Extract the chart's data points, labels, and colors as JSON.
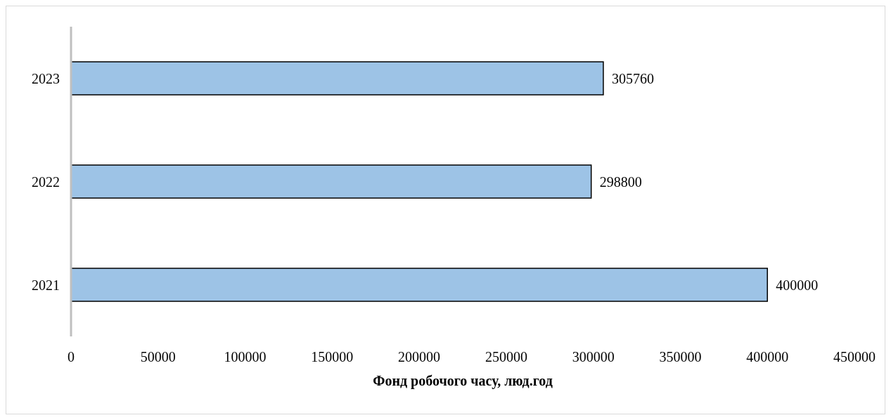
{
  "chart_data": {
    "type": "bar",
    "orientation": "horizontal",
    "xlabel": "Фонд робочого часу, люд.год",
    "categories": [
      "2023",
      "2022",
      "2021"
    ],
    "values": [
      305760,
      298800,
      400000
    ],
    "color": "#9dc3e6",
    "xlim": [
      0,
      450000
    ],
    "xticks": [
      0,
      50000,
      100000,
      150000,
      200000,
      250000,
      300000,
      350000,
      400000,
      450000
    ],
    "data_labels": true,
    "grid": false
  }
}
